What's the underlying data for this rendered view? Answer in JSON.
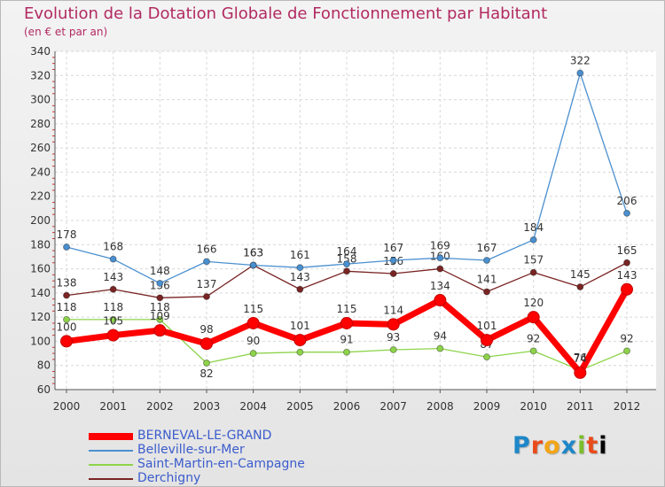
{
  "chart_data": {
    "type": "line",
    "title": "Evolution de la Dotation Globale de Fonctionnement par Habitant",
    "subtitle": "(en € et par an)",
    "x": [
      "2000",
      "2001",
      "2002",
      "2003",
      "2004",
      "2005",
      "2006",
      "2007",
      "2008",
      "2009",
      "2010",
      "2011",
      "2012"
    ],
    "ylim": [
      60,
      340
    ],
    "yticks": [
      "60",
      "80",
      "100",
      "120",
      "140",
      "160",
      "180",
      "200",
      "220",
      "240",
      "260",
      "280",
      "300",
      "320",
      "340"
    ],
    "grid": true,
    "legend_position": "bottom-left",
    "series": [
      {
        "name": "Derchigny",
        "color": "#7a2424",
        "values": [
          138,
          143,
          136,
          137,
          163,
          143,
          158,
          156,
          160,
          141,
          157,
          145,
          165
        ]
      },
      {
        "name": "Saint-Martin-en-Campagne",
        "color": "#8ed44a",
        "values": [
          118,
          118,
          118,
          82,
          90,
          91,
          91,
          93,
          94,
          87,
          92,
          76,
          92
        ]
      },
      {
        "name": "Belleville-sur-Mer",
        "color": "#4a90d0",
        "values": [
          178,
          168,
          148,
          166,
          163,
          161,
          164,
          167,
          169,
          167,
          184,
          322,
          206
        ]
      },
      {
        "name": "BERNEVAL-LE-GRAND",
        "color": "#ff0000",
        "values": [
          100,
          105,
          109,
          98,
          115,
          101,
          115,
          114,
          134,
          101,
          120,
          74,
          143
        ]
      }
    ]
  },
  "legend_order": [
    "BERNEVAL-LE-GRAND",
    "Belleville-sur-Mer",
    "Saint-Martin-en-Campagne",
    "Derchigny"
  ],
  "logo_text": [
    "P",
    "r",
    "o",
    "x",
    "i",
    "t"
  ]
}
